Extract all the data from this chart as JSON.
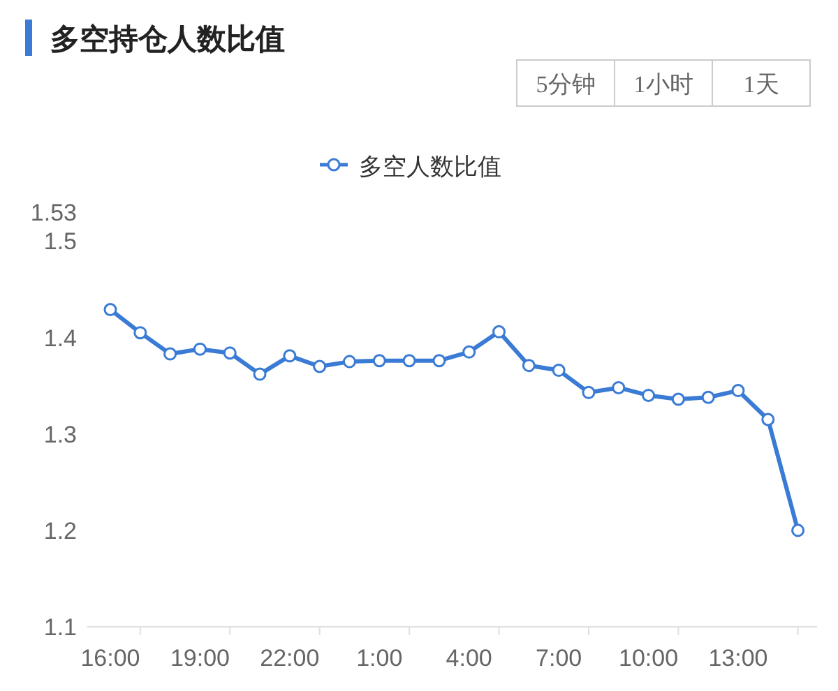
{
  "chart_data": {
    "type": "line",
    "title": "多空持仓人数比值",
    "annotations": [
      "5分钟",
      "1小时",
      "1天"
    ],
    "categories": [
      "16:00",
      null,
      null,
      "19:00",
      null,
      null,
      "22:00",
      null,
      null,
      "1:00",
      null,
      null,
      "4:00",
      null,
      null,
      "7:00",
      null,
      null,
      "10:00",
      null,
      null,
      "13:00",
      null,
      null
    ],
    "series": [
      {
        "name": "多空人数比值",
        "color": "#3a7bd5",
        "values": [
          1.429,
          1.405,
          1.383,
          1.388,
          1.384,
          1.362,
          1.381,
          1.37,
          1.375,
          1.376,
          1.376,
          1.376,
          1.385,
          1.406,
          1.371,
          1.366,
          1.343,
          1.348,
          1.34,
          1.336,
          1.338,
          1.345,
          1.315,
          1.2
        ]
      }
    ],
    "ylim": [
      1.1,
      1.53
    ],
    "yticks": [
      1.1,
      1.2,
      1.3,
      1.4,
      1.5,
      1.53
    ],
    "grid": false,
    "legend": "top",
    "marker": "circle",
    "line_style": "solid"
  }
}
